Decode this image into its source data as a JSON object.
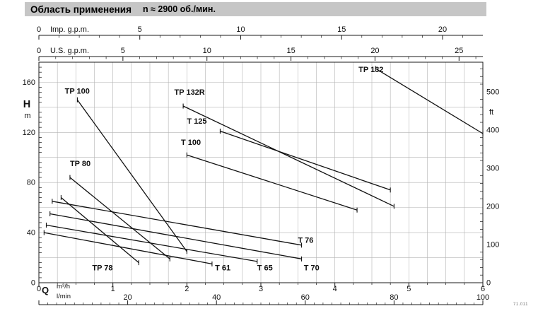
{
  "title": {
    "text": "Область применения",
    "speed": "n ≈ 2900 об./мин."
  },
  "doc_code": "71.011",
  "chart_data": {
    "type": "line",
    "title": "Область применения",
    "subtitle": "n ≈ 2900 об./мин.",
    "x_axes": [
      {
        "id": "imp_gpm",
        "position": "top",
        "label": "Imp. g.p.m.",
        "ticks": [
          0,
          5,
          10,
          15,
          20
        ],
        "minor_step": 1,
        "units_per_m3h": 3.6662
      },
      {
        "id": "us_gpm",
        "position": "top",
        "label": "U.S. g.p.m.",
        "ticks": [
          0,
          5,
          10,
          15,
          20,
          25
        ],
        "minor_step": 1,
        "units_per_m3h": 4.4029
      },
      {
        "id": "m3h",
        "position": "bottom",
        "symbol": "Q",
        "label": "m³/h",
        "ticks": [
          0,
          1,
          2,
          3,
          4,
          5,
          6
        ],
        "range": [
          0,
          6
        ]
      },
      {
        "id": "lmin",
        "position": "bottom",
        "label": "l/min",
        "ticks": [
          0,
          20,
          40,
          60,
          80,
          100
        ],
        "minor_step": 2,
        "units_per_m3h": 16.6667,
        "range": [
          0,
          100
        ]
      }
    ],
    "y_axes": [
      {
        "id": "h_m",
        "position": "left",
        "symbol": "H",
        "unit": "m",
        "ticks": [
          0,
          40,
          80,
          120,
          160
        ],
        "range": [
          0,
          176
        ]
      },
      {
        "id": "ft",
        "position": "right",
        "unit": "ft",
        "ticks": [
          0,
          100,
          200,
          300,
          400,
          500
        ],
        "m_per_unit": 0.3048
      }
    ],
    "grid": {
      "x_step_m3h": 0.25,
      "y_step_m": 20
    },
    "legend": "none",
    "colors": {
      "titlebar_bg": "#c6c6c6",
      "grid": "#b3b3b3",
      "axis": "#1a1a1a",
      "line": "#111111"
    },
    "series": [
      {
        "name": "TP 100",
        "points": [
          [
            0.52,
            146
          ],
          [
            2.0,
            25
          ]
        ],
        "label_at": [
          0.35,
          151
        ]
      },
      {
        "name": "TP 80",
        "points": [
          [
            0.42,
            84
          ],
          [
            1.77,
            19
          ]
        ],
        "label_at": [
          0.42,
          93
        ]
      },
      {
        "name": "TP 78",
        "points": [
          [
            0.3,
            68
          ],
          [
            1.35,
            16
          ]
        ],
        "label_at": [
          0.72,
          10
        ]
      },
      {
        "name": "T 61",
        "points": [
          [
            0.07,
            40
          ],
          [
            2.34,
            15
          ]
        ],
        "label_at": [
          2.38,
          10
        ]
      },
      {
        "name": "T 65",
        "points": [
          [
            0.1,
            46
          ],
          [
            2.95,
            17
          ]
        ],
        "label_at": [
          2.95,
          10
        ]
      },
      {
        "name": "T 70",
        "points": [
          [
            0.15,
            55
          ],
          [
            3.55,
            19
          ]
        ],
        "label_at": [
          3.58,
          10
        ]
      },
      {
        "name": "T 76",
        "points": [
          [
            0.18,
            65
          ],
          [
            3.55,
            30
          ]
        ],
        "label_at": [
          3.5,
          32
        ]
      },
      {
        "name": "T 100",
        "points": [
          [
            2.0,
            102
          ],
          [
            4.3,
            58
          ]
        ],
        "label_at": [
          1.92,
          110
        ]
      },
      {
        "name": "T 125",
        "points": [
          [
            2.45,
            121
          ],
          [
            4.75,
            74
          ]
        ],
        "label_at": [
          2.0,
          127
        ]
      },
      {
        "name": "TP 132R",
        "points": [
          [
            1.95,
            141
          ],
          [
            4.8,
            61
          ]
        ],
        "label_at": [
          1.83,
          150
        ]
      },
      {
        "name": "TP 132",
        "points": [
          [
            4.55,
            171
          ],
          [
            6.0,
            119
          ]
        ],
        "label_at": [
          4.32,
          168
        ]
      }
    ]
  }
}
